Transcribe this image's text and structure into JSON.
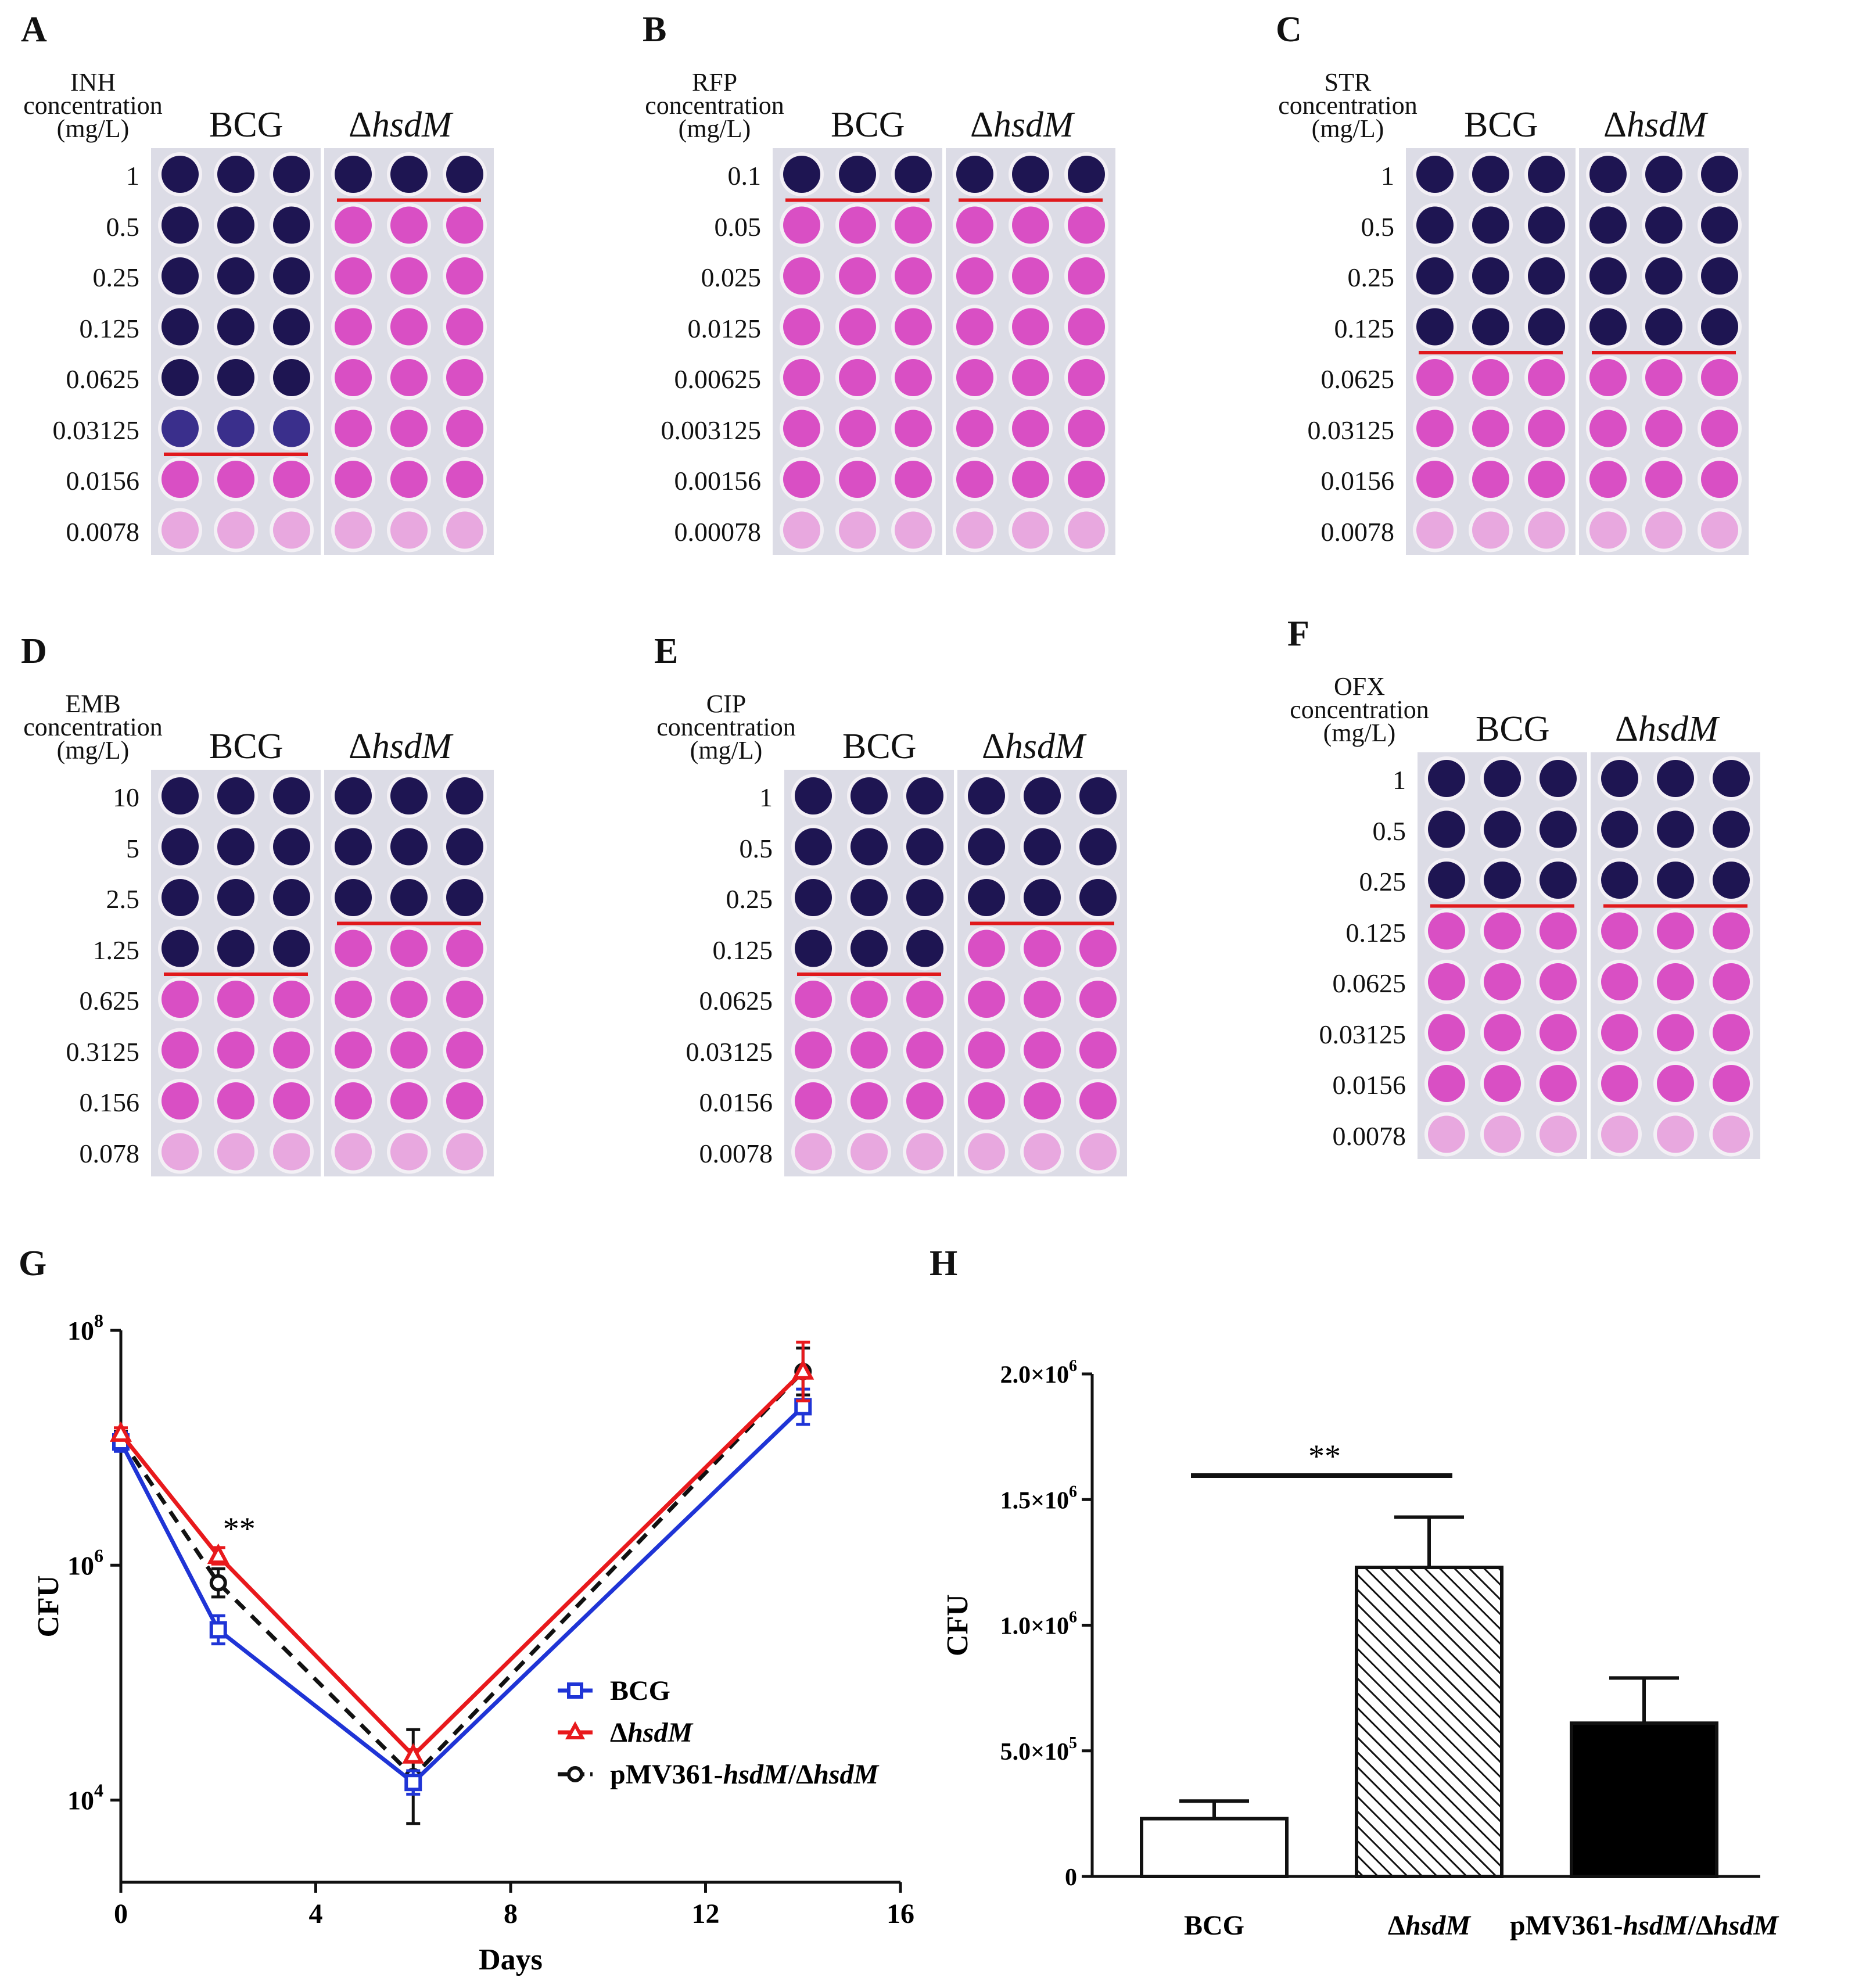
{
  "plates": [
    {
      "id": "A",
      "drug": "INH",
      "concentration_word": "concentration",
      "unit": "(mg/L)",
      "strains": [
        "BCG",
        "ΔhsdM"
      ],
      "concentrations": [
        "1",
        "0.5",
        "0.25",
        "0.125",
        "0.0625",
        "0.03125",
        "0.0156",
        "0.0078"
      ],
      "blue_rows": [
        6,
        1
      ]
    },
    {
      "id": "B",
      "drug": "RFP",
      "concentration_word": "concentration",
      "unit": "(mg/L)",
      "strains": [
        "BCG",
        "ΔhsdM"
      ],
      "concentrations": [
        "0.1",
        "0.05",
        "0.025",
        "0.0125",
        "0.00625",
        "0.003125",
        "0.00156",
        "0.00078"
      ],
      "blue_rows": [
        1,
        1
      ]
    },
    {
      "id": "C",
      "drug": "STR",
      "concentration_word": "concentration",
      "unit": "(mg/L)",
      "strains": [
        "BCG",
        "ΔhsdM"
      ],
      "concentrations": [
        "1",
        "0.5",
        "0.25",
        "0.125",
        "0.0625",
        "0.03125",
        "0.0156",
        "0.0078"
      ],
      "blue_rows": [
        4,
        4
      ]
    },
    {
      "id": "D",
      "drug": "EMB",
      "concentration_word": "concentration",
      "unit": "(mg/L)",
      "strains": [
        "BCG",
        "ΔhsdM"
      ],
      "concentrations": [
        "10",
        "5",
        "2.5",
        "1.25",
        "0.625",
        "0.3125",
        "0.156",
        "0.078"
      ],
      "blue_rows": [
        4,
        3
      ]
    },
    {
      "id": "E",
      "drug": "CIP",
      "concentration_word": "concentration",
      "unit": "(mg/L)",
      "strains": [
        "BCG",
        "ΔhsdM"
      ],
      "concentrations": [
        "1",
        "0.5",
        "0.25",
        "0.125",
        "0.0625",
        "0.03125",
        "0.0156",
        "0.0078"
      ],
      "blue_rows": [
        4,
        3
      ]
    },
    {
      "id": "F",
      "drug": "OFX",
      "concentration_word": "concentration",
      "unit": "(mg/L)",
      "strains": [
        "BCG",
        "ΔhsdM"
      ],
      "concentrations": [
        "1",
        "0.5",
        "0.25",
        "0.125",
        "0.0625",
        "0.03125",
        "0.0156",
        "0.0078"
      ],
      "blue_rows": [
        3,
        3
      ]
    }
  ],
  "colors": {
    "blue_dark": "#1e1552",
    "blue_mid": "#3a2f8c",
    "pink": "#d94fc4",
    "pink_light": "#e8a8df",
    "plate_bg": "#dcdce6",
    "red_line": "#e0181c",
    "bcg": "#1f34d6",
    "hsdm": "#e8191c",
    "comp": "#111111"
  },
  "chart_data": [
    {
      "id": "G",
      "type": "line",
      "xlabel": "Days",
      "ylabel": "CFU",
      "xlim": [
        0,
        16
      ],
      "xticks": [
        "0",
        "4",
        "8",
        "12",
        "16"
      ],
      "ylim_log10": [
        3.3,
        8
      ],
      "yticks": [
        {
          "base": "10",
          "exp": "8"
        },
        {
          "base": "10",
          "exp": "6"
        },
        {
          "base": "10",
          "exp": "4"
        }
      ],
      "annotation": "**",
      "series": [
        {
          "name": "BCG",
          "x": [
            0,
            2,
            6,
            14
          ],
          "y_log10": [
            7.05,
            5.45,
            4.15,
            7.35
          ],
          "err": [
            0.08,
            0.12,
            0.1,
            0.15
          ]
        },
        {
          "name": "ΔhsdM",
          "x": [
            0,
            2,
            6,
            14
          ],
          "y_log10": [
            7.12,
            6.08,
            4.38,
            7.65
          ],
          "err": [
            0.05,
            0.07,
            0.05,
            0.25
          ]
        },
        {
          "name": "pMV361-hsdM/ΔhsdM",
          "x": [
            0,
            2,
            6,
            14
          ],
          "y_log10": [
            7.08,
            5.85,
            4.2,
            7.65
          ],
          "err": [
            0.06,
            0.12,
            0.4,
            0.2
          ]
        }
      ],
      "legend": [
        {
          "name_plain": "BCG",
          "name_italic": "",
          "name_rest": ""
        },
        {
          "name_plain": "Δ",
          "name_italic": "hsdM",
          "name_rest": ""
        },
        {
          "name_plain": "pMV361-",
          "name_italic": "hsdM",
          "name_rest": "/ΔhsdM"
        }
      ]
    },
    {
      "id": "H",
      "type": "bar",
      "ylabel": "CFU",
      "ylim": [
        0,
        2000000
      ],
      "yticks": [
        {
          "label": "0",
          "value": 0
        },
        {
          "label": "5.0×10",
          "exp": "5",
          "value": 500000
        },
        {
          "label": "1.0×10",
          "exp": "6",
          "value": 1000000
        },
        {
          "label": "1.5×10",
          "exp": "6",
          "value": 1500000
        },
        {
          "label": "2.0×10",
          "exp": "6",
          "value": 2000000
        }
      ],
      "categories": [
        "BCG",
        "ΔhsdM",
        "pMV361-hsdM/ΔhsdM"
      ],
      "values": [
        230000,
        1230000,
        610000
      ],
      "errors": [
        70000,
        200000,
        180000
      ],
      "annotation": "**"
    }
  ]
}
